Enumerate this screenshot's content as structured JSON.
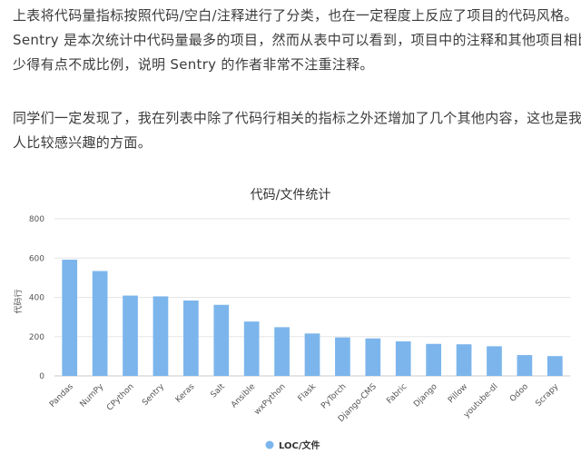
{
  "article": {
    "p1_lines": [
      "上表将代码量指标按照代码/空白/注释进行了分类，也在一定程度上反应了项目的代码风格。",
      "Sentry 是本次统计中代码量最多的项目，然而从表中可以看到，项目中的注释和其他项目相比，",
      "少得有点不成比例，说明 Sentry 的作者非常不注重注释。"
    ],
    "p2_lines": [
      "同学们一定发现了，我在列表中除了代码行相关的指标之外还增加了几个其他内容，这也是我个",
      "人比较感兴趣的方面。"
    ]
  },
  "chart_data": {
    "type": "bar",
    "title": "代码/文件统计",
    "xlabel": "",
    "ylabel": "代码行",
    "ylim": [
      0,
      800
    ],
    "yticks": [
      0,
      200,
      400,
      600,
      800
    ],
    "categories": [
      "Pandas",
      "NumPy",
      "CPython",
      "Sentry",
      "Keras",
      "Salt",
      "Ansible",
      "wxPython",
      "Flask",
      "PyTorch",
      "Django-CMS",
      "Fabric",
      "Django",
      "Pillow",
      "youtube-dl",
      "Odoo",
      "Scrapy"
    ],
    "series": [
      {
        "name": "LOC/文件",
        "values": [
          592,
          534,
          409,
          405,
          384,
          362,
          277,
          248,
          216,
          196,
          191,
          176,
          163,
          161,
          151,
          106,
          101
        ]
      }
    ],
    "bar_color": "#7cb5ec",
    "grid": true,
    "legend_position": "bottom-center"
  }
}
